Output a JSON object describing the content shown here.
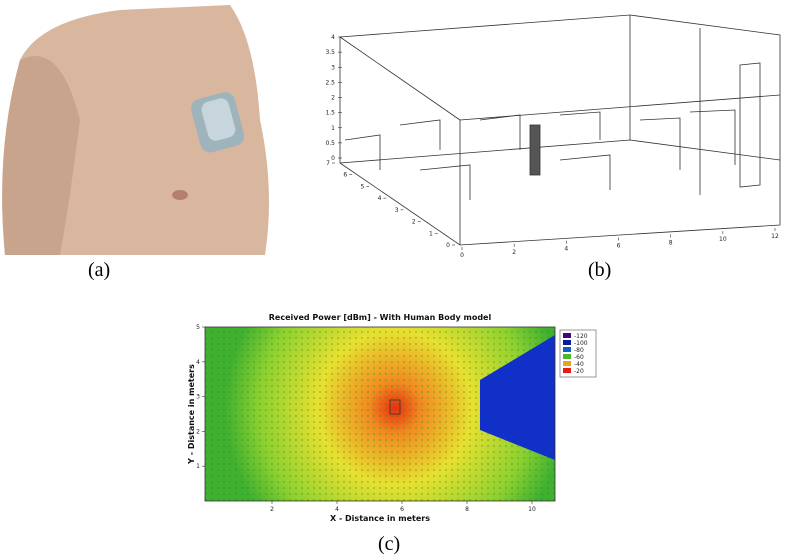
{
  "panels": [
    {
      "label": "(a)"
    },
    {
      "label": "(b)",
      "z_ticks": [
        0,
        0.5,
        1,
        1.5,
        2,
        2.5,
        3,
        3.5,
        4
      ],
      "depth_ticks": [
        0,
        1,
        2,
        3,
        4,
        5,
        6,
        7
      ],
      "x_ticks": [
        0,
        2,
        4,
        6,
        8,
        10,
        12
      ]
    },
    {
      "label": "(c)",
      "title": "Received Power [dBm] - With Human Body model",
      "xlabel": "X - Distance in meters",
      "ylabel": "Y - Distance in meters",
      "xlim": [
        0,
        11
      ],
      "ylim": [
        0,
        5
      ],
      "xticks": [
        2,
        4,
        6,
        8,
        10
      ],
      "yticks": [
        1,
        2,
        3,
        4,
        5
      ],
      "legend": [
        {
          "value": -120,
          "color": "#3b0a7a"
        },
        {
          "value": -100,
          "color": "#0a1a9a"
        },
        {
          "value": -80,
          "color": "#1060c0"
        },
        {
          "value": -60,
          "color": "#4cb830"
        },
        {
          "value": -40,
          "color": "#f0a020"
        },
        {
          "value": -20,
          "color": "#e02010"
        }
      ]
    }
  ]
}
